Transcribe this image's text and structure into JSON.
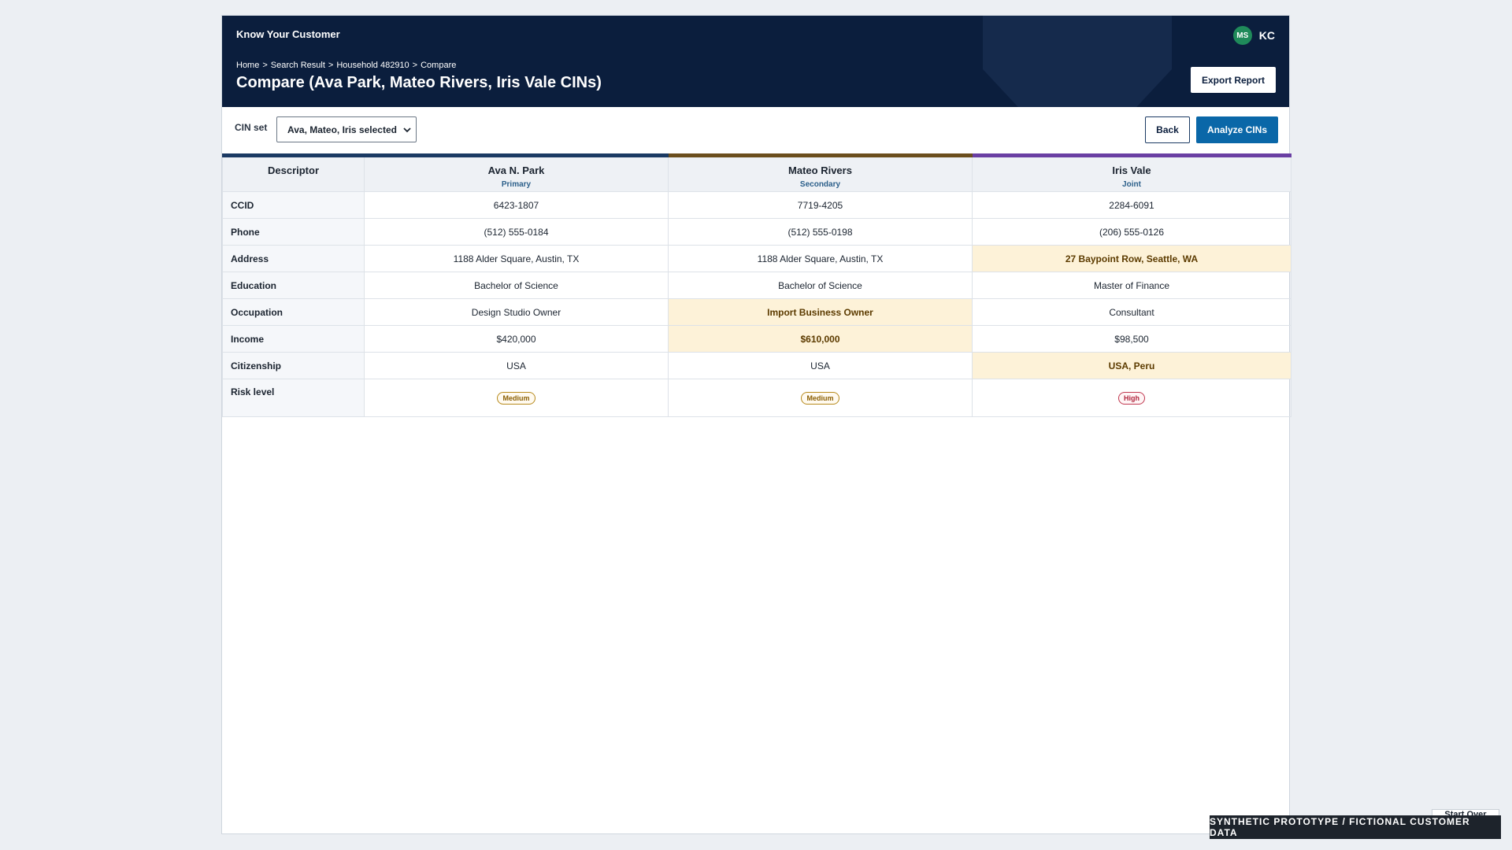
{
  "header": {
    "app_title": "Know Your Customer",
    "avatar_initials": "MS",
    "user_initials": "KC",
    "breadcrumb": [
      "Home",
      ">",
      "Search Result",
      ">",
      "Household 482910",
      ">",
      "Compare"
    ],
    "page_title": "Compare (Ava Park, Mateo Rivers, Iris Vale CINs)",
    "export_label": "Export Report"
  },
  "toolbar": {
    "cin_label": "CIN set",
    "cin_select_value": "Ava, Mateo, Iris selected",
    "back_label": "Back",
    "analyze_label": "Analyze CINs"
  },
  "table": {
    "descriptor_header": "Descriptor",
    "columns": [
      {
        "name": "Ava N. Park",
        "role": "Primary",
        "accent": "#1b3a63"
      },
      {
        "name": "Mateo Rivers",
        "role": "Secondary",
        "accent": "#6b4e1e"
      },
      {
        "name": "Iris Vale",
        "role": "Joint",
        "accent": "#6a3fa3"
      }
    ],
    "rows": [
      {
        "label": "CCID",
        "values": [
          "6423-1807",
          "7719-4205",
          "2284-6091"
        ]
      },
      {
        "label": "Phone",
        "values": [
          "(512) 555-0184",
          "(512) 555-0198",
          "(206) 555-0126"
        ]
      },
      {
        "label": "Address",
        "values": [
          "1188 Alder Square, Austin, TX",
          "1188 Alder Square, Austin, TX",
          "27 Baypoint Row, Seattle, WA"
        ]
      },
      {
        "label": "Education",
        "values": [
          "Bachelor of Science",
          "Bachelor of Science",
          "Master of Finance"
        ]
      },
      {
        "label": "Occupation",
        "values": [
          "Design Studio Owner",
          "Import Business Owner",
          "Consultant"
        ]
      },
      {
        "label": "Income",
        "values": [
          "$420,000",
          "$610,000",
          "$98,500"
        ]
      },
      {
        "label": "Citizenship",
        "values": [
          "USA",
          "USA",
          "USA, Peru"
        ]
      },
      {
        "label": "Risk level",
        "values": [
          "Medium",
          "Medium",
          "High"
        ]
      }
    ],
    "highlight_color": "#fdf2d8"
  },
  "footer": {
    "note": "SYNTHETIC PROTOTYPE / FICTIONAL CUSTOMER DATA",
    "start_over_label": "Start Over"
  }
}
